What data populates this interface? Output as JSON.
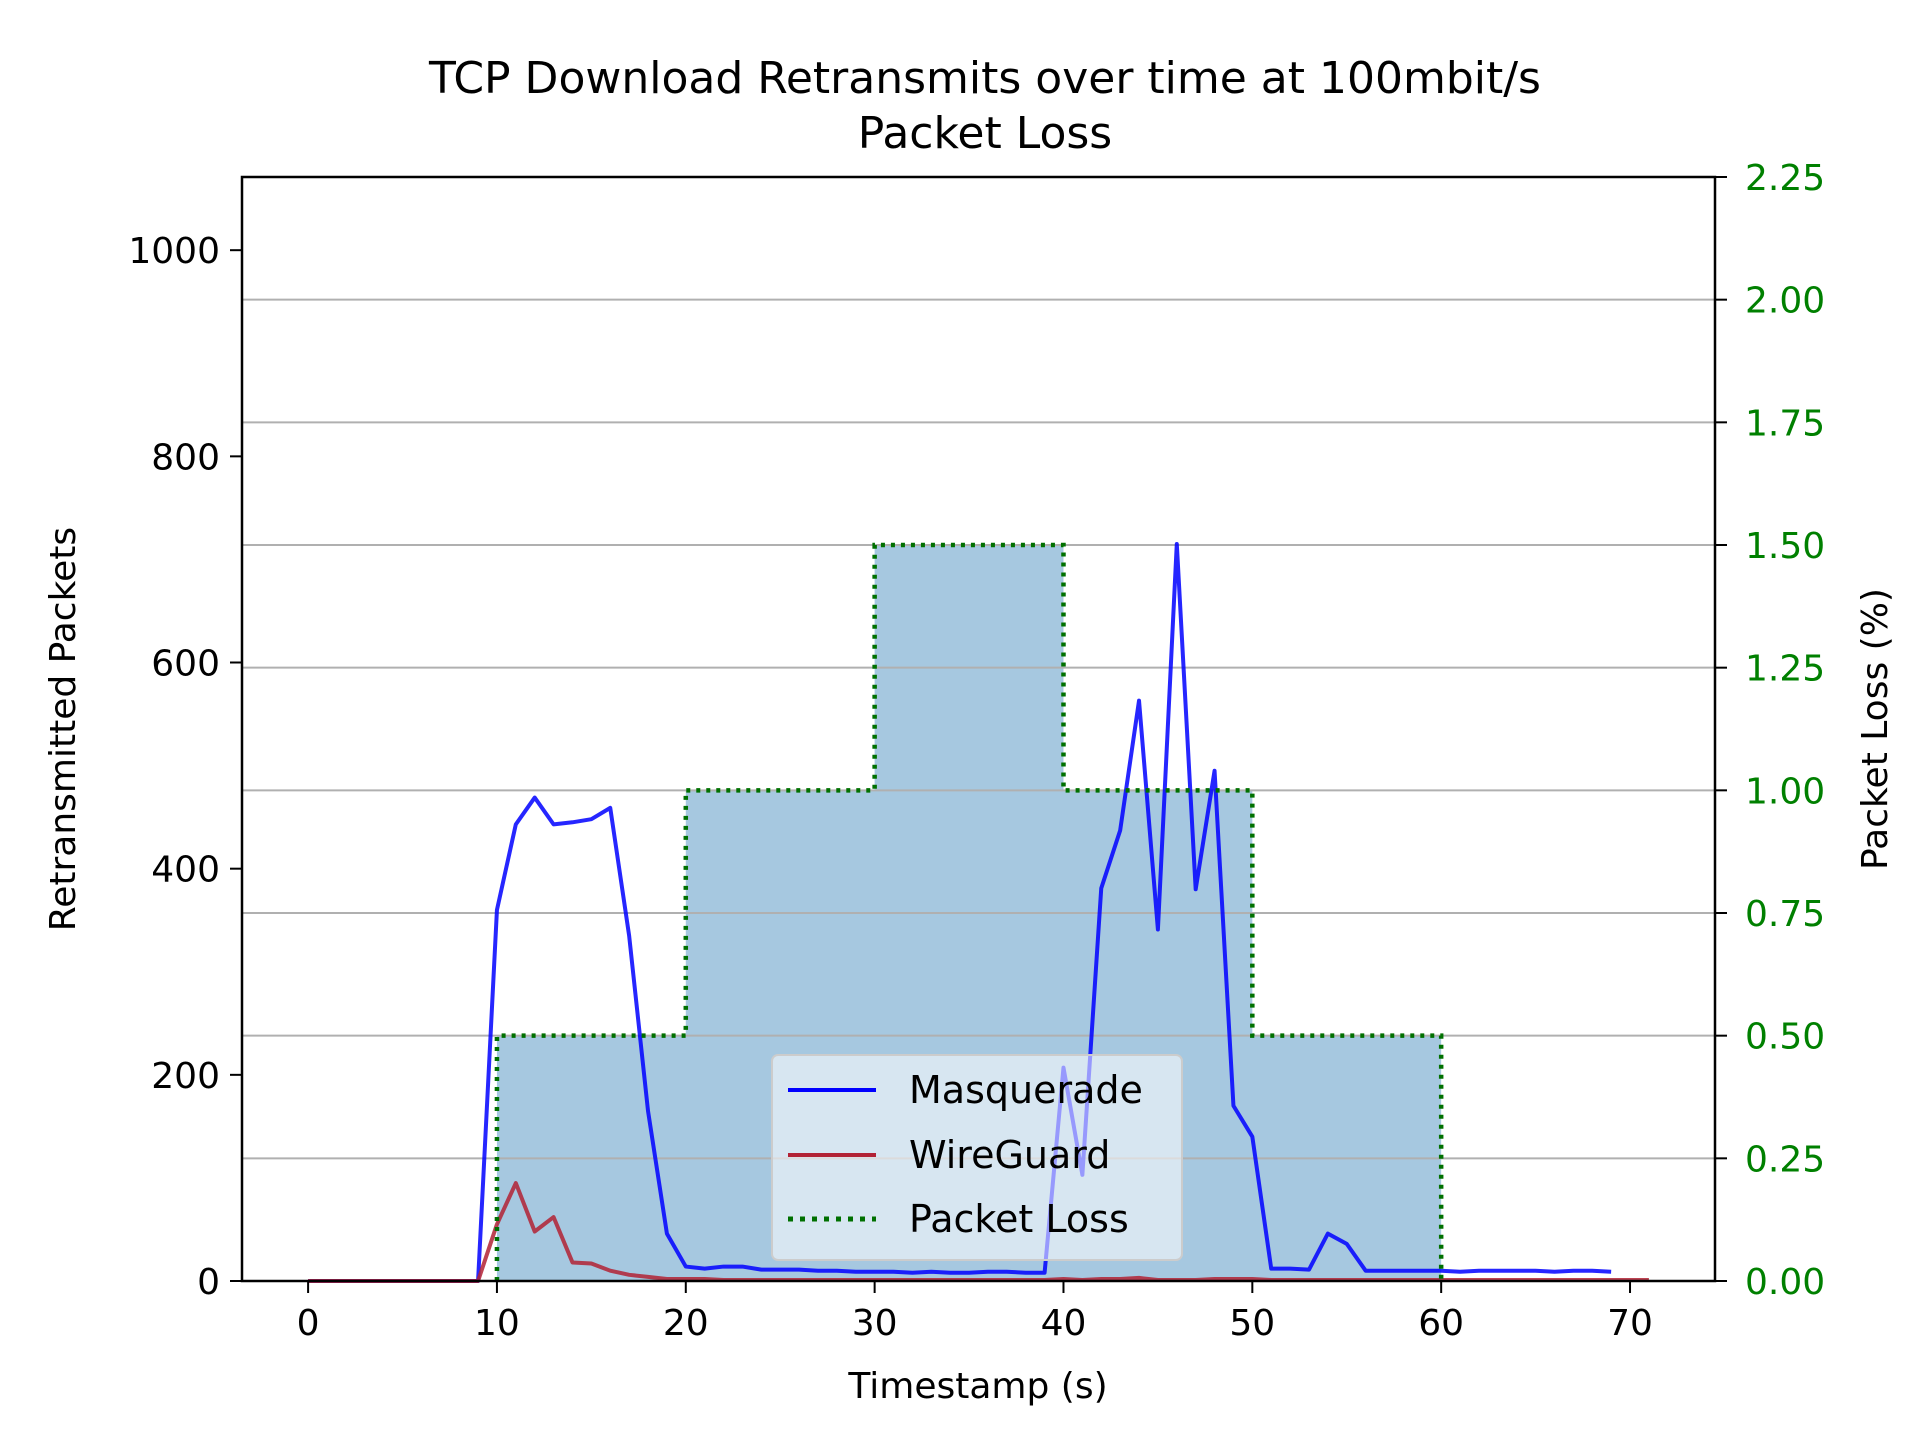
{
  "chart_data": {
    "type": "line",
    "title_lines": [
      "TCP Download Retransmits over time at 100mbit/s",
      "Packet Loss"
    ],
    "xlabel": "Timestamp (s)",
    "ylabel": "Retransmitted Packets",
    "y2label": "Packet Loss (%)",
    "xlim": [
      -3.5,
      74.5
    ],
    "ylim": [
      0,
      1071
    ],
    "y2lim": [
      0,
      2.25
    ],
    "xticks": [
      0,
      10,
      20,
      30,
      40,
      50,
      60,
      70
    ],
    "xtick_labels": [
      "0",
      "10",
      "20",
      "30",
      "40",
      "50",
      "60",
      "70"
    ],
    "yticks": [
      0,
      200,
      400,
      600,
      800,
      1000
    ],
    "ytick_labels": [
      "0",
      "200",
      "400",
      "600",
      "800",
      "1000"
    ],
    "y2ticks": [
      0,
      0.25,
      0.5,
      0.75,
      1.0,
      1.25,
      1.5,
      1.75,
      2.0,
      2.25
    ],
    "y2tick_labels": [
      "0.00",
      "0.25",
      "0.50",
      "0.75",
      "1.00",
      "1.25",
      "1.50",
      "1.75",
      "2.00",
      "2.25"
    ],
    "grid": "horizontal at right-axis ticks",
    "legend_position": "lower center",
    "colors": {
      "masquerade": "#0000ff",
      "wireguard": "#b22234",
      "packet_loss_line": "#007000",
      "packet_loss_fill": "#a6c8e0",
      "right_axis": "#008000",
      "grid": "#b0b0b0"
    },
    "series": [
      {
        "name": "Masquerade",
        "x": [
          0,
          1,
          2,
          3,
          4,
          5,
          6,
          7,
          8,
          9,
          10,
          11,
          12,
          13,
          14,
          15,
          16,
          17,
          18,
          19,
          20,
          21,
          22,
          23,
          24,
          25,
          26,
          27,
          28,
          29,
          30,
          31,
          32,
          33,
          34,
          35,
          36,
          37,
          38,
          39,
          40,
          41,
          42,
          43,
          44,
          45,
          46,
          47,
          48,
          49,
          50,
          51,
          52,
          53,
          54,
          55,
          56,
          57,
          58,
          59,
          60,
          61,
          62,
          63,
          64,
          65,
          66,
          67,
          68,
          69
        ],
        "y": [
          0,
          0,
          0,
          0,
          0,
          0,
          0,
          0,
          0,
          0,
          360,
          443,
          469,
          443,
          445,
          448,
          459,
          335,
          165,
          46,
          14,
          12,
          14,
          14,
          11,
          11,
          11,
          10,
          10,
          9,
          9,
          9,
          8,
          9,
          8,
          8,
          9,
          9,
          8,
          8,
          207,
          103,
          381,
          437,
          563,
          341,
          715,
          380,
          495,
          170,
          140,
          12,
          12,
          11,
          46,
          36,
          10,
          10,
          10,
          10,
          10,
          9,
          10,
          10,
          10,
          10,
          9,
          10,
          10,
          9
        ]
      },
      {
        "name": "WireGuard",
        "x": [
          0,
          1,
          2,
          3,
          4,
          5,
          6,
          7,
          8,
          9,
          10,
          11,
          12,
          13,
          14,
          15,
          16,
          17,
          18,
          19,
          20,
          21,
          22,
          23,
          24,
          25,
          26,
          27,
          28,
          29,
          30,
          31,
          32,
          33,
          34,
          35,
          36,
          37,
          38,
          39,
          40,
          41,
          42,
          43,
          44,
          45,
          46,
          47,
          48,
          49,
          50,
          51,
          52,
          53,
          54,
          55,
          56,
          57,
          58,
          59,
          60,
          61,
          62,
          63,
          64,
          65,
          66,
          67,
          68,
          69,
          70,
          71
        ],
        "y": [
          0,
          0,
          0,
          0,
          0,
          0,
          0,
          0,
          0,
          0,
          55,
          95,
          48,
          62,
          18,
          17,
          10,
          6,
          4,
          2,
          2,
          2,
          1,
          1,
          1,
          1,
          1,
          1,
          1,
          1,
          1,
          1,
          1,
          1,
          1,
          1,
          1,
          1,
          1,
          1,
          2,
          1,
          2,
          2,
          3,
          1,
          1,
          1,
          2,
          2,
          2,
          1,
          1,
          1,
          1,
          1,
          1,
          1,
          1,
          1,
          1,
          1,
          1,
          1,
          1,
          1,
          1,
          1,
          1,
          1,
          1,
          1
        ]
      },
      {
        "name": "Packet Loss",
        "axis": "right",
        "step_edges": [
          10,
          20,
          30,
          40,
          50,
          60
        ],
        "step_values": [
          0.5,
          1.0,
          1.5,
          1.0,
          0.5
        ]
      }
    ],
    "legend": [
      "Masquerade",
      "WireGuard",
      "Packet Loss"
    ]
  }
}
